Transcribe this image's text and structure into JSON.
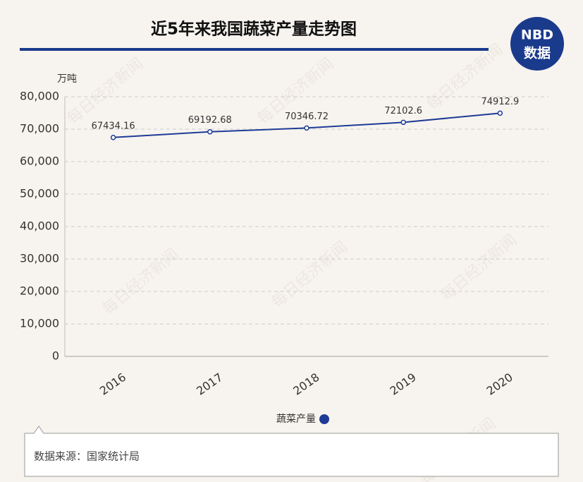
{
  "logo": {
    "line1": "NBD",
    "line2": "数据"
  },
  "watermark": "每日经济新闻",
  "chart_data": {
    "type": "line",
    "title": "近5年来我国蔬菜产量走势图",
    "y_label": "万吨",
    "categories": [
      "2016",
      "2017",
      "2018",
      "2019",
      "2020"
    ],
    "series": [
      {
        "name": "蔬菜产量",
        "color": "#1f3b96",
        "values": [
          67434.16,
          69192.68,
          70346.72,
          72102.6,
          74912.9
        ]
      }
    ],
    "ylim": [
      0,
      80000
    ],
    "yticks": [
      0,
      {
        "value": 10000,
        "label": "10,000"
      },
      {
        "value": 20000,
        "label": "20,000"
      },
      {
        "value": 30000,
        "label": "30,000"
      },
      {
        "value": 40000,
        "label": "40,000"
      },
      {
        "value": 50000,
        "label": "50,000"
      },
      {
        "value": 60000,
        "label": "60,000"
      },
      {
        "value": 70000,
        "label": "70,000"
      },
      {
        "value": 80000,
        "label": "80,000"
      }
    ],
    "grid": true,
    "source": "数据来源：国家统计局"
  }
}
